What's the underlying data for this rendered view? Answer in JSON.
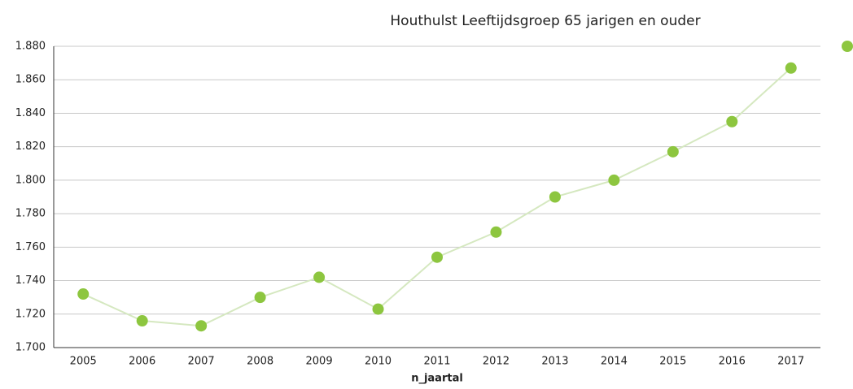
{
  "chart_data": {
    "type": "line",
    "title": "Houthulst  Leeftijdsgroep 65 jarigen en ouder",
    "x_label": "n_jaartal",
    "categories": [
      "2005",
      "2006",
      "2007",
      "2008",
      "2009",
      "2010",
      "2011",
      "2012",
      "2013",
      "2014",
      "2015",
      "2016",
      "2017"
    ],
    "values": [
      1732,
      1716,
      1713,
      1730,
      1742,
      1723,
      1754,
      1769,
      1790,
      1800,
      1817,
      1835,
      1867
    ],
    "color": "#8dc63f",
    "line_color": "#d5e8c0",
    "ylim": [
      1700,
      1880
    ],
    "yticks": [
      {
        "value": 1700,
        "label": "1.700"
      },
      {
        "value": 1720,
        "label": "1.720"
      },
      {
        "value": 1740,
        "label": "1.740"
      },
      {
        "value": 1760,
        "label": "1.760"
      },
      {
        "value": 1780,
        "label": "1.780"
      },
      {
        "value": 1800,
        "label": "1.800"
      },
      {
        "value": 1820,
        "label": "1.820"
      },
      {
        "value": 1840,
        "label": "1.840"
      },
      {
        "value": 1860,
        "label": "1.860"
      },
      {
        "value": 1880,
        "label": "1.880"
      }
    ],
    "grid": true
  }
}
